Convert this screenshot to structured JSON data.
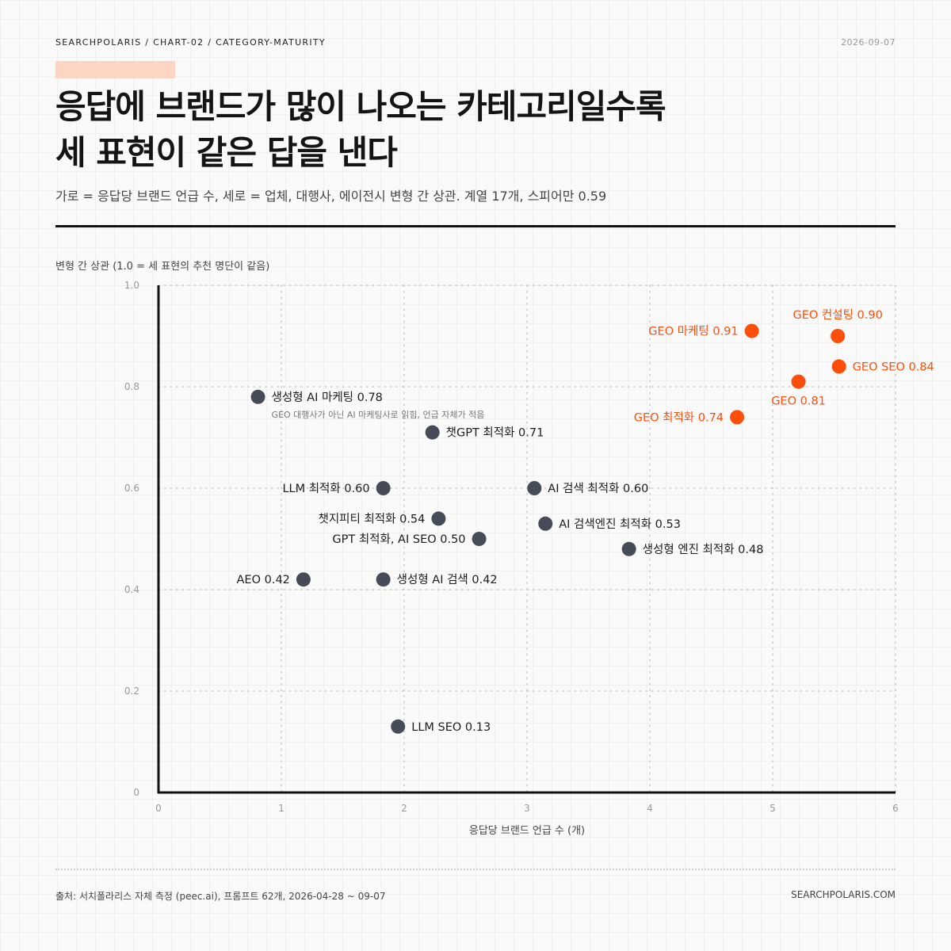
{
  "header": {
    "kicker": "SEARCHPOLARIS / CHART-02 / CATEGORY-MATURITY",
    "date": "2026-09-07",
    "title_line1": "응답에 브랜드가 많이 나오는 카테고리일수록",
    "title_line2": "세 표현이 같은 답을 낸다",
    "subtitle": "가로 = 응답당 브랜드 언급 수, 세로 = 업체, 대행사, 에이전시 변형 간 상관. 계열 17개, 스피어만 0.59"
  },
  "footer": {
    "source": "출처: 서치폴라리스 자체 측정 (peec.ai), 프롬프트 62개, 2026-04-28 ~ 09-07",
    "site": "SEARCHPOLARIS.COM"
  },
  "colors": {
    "highlight": "#ff4d0a",
    "point": "#464c57",
    "axis": "#111111",
    "accent_bar": "#fdd5c2"
  },
  "chart_data": {
    "type": "scatter",
    "ylabel": "변형 간 상관 (1.0 = 세 표현의 추천 명단이 같음)",
    "xlabel": "응답당 브랜드 언급 수 (개)",
    "xlim": [
      0,
      6
    ],
    "ylim": [
      0,
      1.0
    ],
    "x_ticks": [
      "0",
      "1",
      "2",
      "3",
      "4",
      "5",
      "6"
    ],
    "y_ticks": [
      "0",
      "0.2",
      "0.4",
      "0.6",
      "0.8",
      "1.0"
    ],
    "grid": true,
    "points": [
      {
        "label": "GEO 컨설팅 0.90",
        "x": 5.53,
        "y": 0.9,
        "highlight": true,
        "pos": "above"
      },
      {
        "label": "GEO 마케팅 0.91",
        "x": 4.83,
        "y": 0.91,
        "highlight": true,
        "pos": "left"
      },
      {
        "label": "GEO SEO 0.84",
        "x": 5.54,
        "y": 0.84,
        "highlight": true,
        "pos": "right"
      },
      {
        "label": "GEO 0.81",
        "x": 5.21,
        "y": 0.81,
        "highlight": true,
        "pos": "below"
      },
      {
        "label": "GEO 최적화 0.74",
        "x": 4.71,
        "y": 0.74,
        "highlight": true,
        "pos": "left"
      },
      {
        "label": "생성형 AI 마케팅 0.78",
        "x": 0.81,
        "y": 0.78,
        "highlight": false,
        "pos": "right",
        "note": "GEO 대행사가 아닌 AI 마케팅사로 읽힘, 언급 자체가 적음"
      },
      {
        "label": "챗GPT 최적화 0.71",
        "x": 2.23,
        "y": 0.71,
        "highlight": false,
        "pos": "right"
      },
      {
        "label": "LLM 최적화 0.60",
        "x": 1.83,
        "y": 0.6,
        "highlight": false,
        "pos": "left"
      },
      {
        "label": "AI 검색 최적화 0.60",
        "x": 3.06,
        "y": 0.6,
        "highlight": false,
        "pos": "right"
      },
      {
        "label": "챗지피티 최적화 0.54",
        "x": 2.28,
        "y": 0.54,
        "highlight": false,
        "pos": "left"
      },
      {
        "label": "AI 검색엔진 최적화 0.53",
        "x": 3.15,
        "y": 0.53,
        "highlight": false,
        "pos": "right"
      },
      {
        "label": "GPT 최적화, AI SEO 0.50",
        "x": 2.61,
        "y": 0.5,
        "highlight": false,
        "pos": "left"
      },
      {
        "label": "생성형 엔진 최적화 0.48",
        "x": 3.83,
        "y": 0.48,
        "highlight": false,
        "pos": "right"
      },
      {
        "label": "AEO 0.42",
        "x": 1.18,
        "y": 0.42,
        "highlight": false,
        "pos": "left"
      },
      {
        "label": "생성형 AI 검색 0.42",
        "x": 1.83,
        "y": 0.42,
        "highlight": false,
        "pos": "right"
      },
      {
        "label": "LLM SEO 0.13",
        "x": 1.95,
        "y": 0.13,
        "highlight": false,
        "pos": "right"
      }
    ]
  }
}
